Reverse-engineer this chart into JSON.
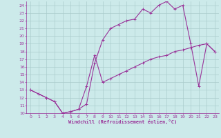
{
  "xlabel": "Windchill (Refroidissement éolien,°C)",
  "bg_color": "#cceaea",
  "line_color": "#993399",
  "grid_color": "#aacccc",
  "xlim": [
    -0.5,
    23.5
  ],
  "ylim": [
    10,
    24.5
  ],
  "xticks": [
    0,
    1,
    2,
    3,
    4,
    5,
    6,
    7,
    8,
    9,
    10,
    11,
    12,
    13,
    14,
    15,
    16,
    17,
    18,
    19,
    20,
    21,
    22,
    23
  ],
  "yticks": [
    10,
    11,
    12,
    13,
    14,
    15,
    16,
    17,
    18,
    19,
    20,
    21,
    22,
    23,
    24
  ],
  "upper_x": [
    0,
    1,
    2,
    3,
    4,
    5,
    6,
    7,
    8,
    9,
    10,
    11,
    12,
    13,
    14,
    15,
    16,
    17,
    18,
    19,
    20,
    21,
    22,
    23
  ],
  "upper_y": [
    13,
    12.5,
    12,
    11.5,
    10,
    10.2,
    10.5,
    11.2,
    16.5,
    19.5,
    21,
    21.5,
    22,
    22.2,
    23.5,
    23,
    24,
    24.5,
    23.5,
    24,
    19,
    13.5,
    19,
    18
  ],
  "lower_x": [
    0,
    1,
    2,
    3,
    4,
    5,
    6,
    7,
    8,
    9,
    10,
    11,
    12,
    13,
    14,
    15,
    16,
    17,
    18,
    19,
    20,
    21,
    22,
    23
  ],
  "lower_y": [
    13,
    12.5,
    12,
    11.5,
    10,
    10.2,
    10.5,
    13.5,
    17.5,
    14,
    14.5,
    15,
    15.5,
    16,
    16.5,
    17,
    17.3,
    17.5,
    18,
    18.2,
    18.5,
    18.8,
    19,
    18
  ]
}
